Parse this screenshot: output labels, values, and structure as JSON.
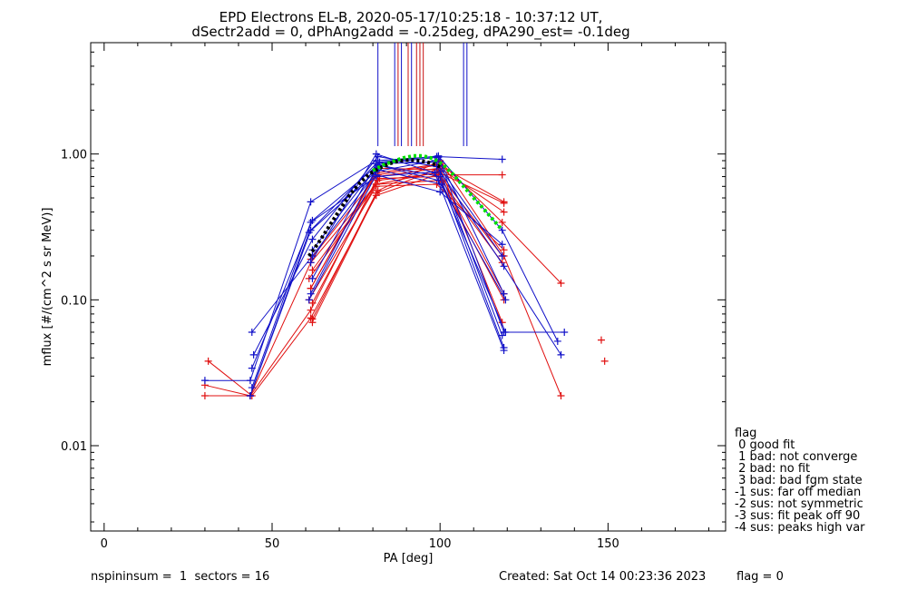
{
  "chart_data": {
    "type": "line",
    "title": "EPD Electrons EL-B, 2020-05-17/10:25:18 - 10:37:12 UT,",
    "subtitle": "dSectr2add = 0, dPhAng2add = -0.25deg, dPA290_est=  -0.1deg",
    "xlabel": "PA [deg]",
    "ylabel": "mflux [#/(cm^2 s sr MeV)]",
    "xlim": [
      -4,
      185
    ],
    "ylim": [
      0.0026,
      5.8
    ],
    "y_scale": "log",
    "x_ticks": [
      0,
      50,
      100,
      150
    ],
    "x_tick_labels": [
      "0",
      "50",
      "100",
      "150"
    ],
    "y_ticks": [
      0.01,
      0.1,
      1.0
    ],
    "y_tick_labels": [
      "0.01",
      "0.10",
      "1.00"
    ],
    "grid": false,
    "vertical_markers": [
      {
        "x": 81.5,
        "color": "#1010c8"
      },
      {
        "x": 86.5,
        "color": "#1010c8"
      },
      {
        "x": 87.5,
        "color": "#c81010"
      },
      {
        "x": 88.5,
        "color": "#1010c8"
      },
      {
        "x": 90.5,
        "color": "#c81010"
      },
      {
        "x": 91.5,
        "color": "#1010c8"
      },
      {
        "x": 93.0,
        "color": "#c81010"
      },
      {
        "x": 94.0,
        "color": "#c81010"
      },
      {
        "x": 95.0,
        "color": "#c81010"
      },
      {
        "x": 107.0,
        "color": "#1010c8"
      },
      {
        "x": 108.0,
        "color": "#1010c8"
      }
    ],
    "blue_spins": [
      [
        [
          30,
          0.028
        ],
        [
          43.5,
          0.028
        ],
        [
          61.5,
          0.47
        ],
        [
          81,
          0.9
        ],
        [
          99,
          0.96
        ],
        [
          118.5,
          0.92
        ]
      ],
      [
        [
          43.5,
          0.022
        ],
        [
          61.5,
          0.3
        ],
        [
          81,
          0.86
        ],
        [
          99.5,
          0.95
        ],
        [
          119,
          0.11
        ]
      ],
      [
        [
          44,
          0.034
        ],
        [
          62,
          0.35
        ],
        [
          81.5,
          0.84
        ],
        [
          100,
          0.7
        ],
        [
          119,
          0.047
        ]
      ],
      [
        [
          44,
          0.06
        ],
        [
          62,
          0.2
        ],
        [
          81.5,
          0.78
        ],
        [
          100.5,
          0.62
        ],
        [
          119.5,
          0.06
        ],
        [
          137,
          0.06
        ]
      ],
      [
        [
          44.5,
          0.042
        ],
        [
          62,
          0.26
        ],
        [
          81.5,
          0.96
        ],
        [
          99,
          0.82
        ],
        [
          119,
          0.17
        ],
        [
          136,
          0.042
        ]
      ],
      [
        [
          43.5,
          0.022
        ],
        [
          61,
          0.29
        ],
        [
          81,
          0.76
        ],
        [
          98.5,
          0.9
        ],
        [
          118.5,
          0.2
        ]
      ],
      [
        [
          44,
          0.025
        ],
        [
          61.5,
          0.34
        ],
        [
          81,
          0.7
        ],
        [
          100,
          0.76
        ],
        [
          118.5,
          0.057
        ]
      ],
      [
        [
          61.5,
          0.18
        ],
        [
          81,
          1.0
        ],
        [
          98.5,
          0.74
        ],
        [
          119,
          0.045
        ]
      ],
      [
        [
          62,
          0.22
        ],
        [
          81.5,
          0.84
        ],
        [
          99.5,
          0.66
        ],
        [
          119.5,
          0.1
        ]
      ],
      [
        [
          61,
          0.1
        ],
        [
          81,
          0.72
        ],
        [
          100,
          0.55
        ],
        [
          118.5,
          0.24
        ]
      ],
      [
        [
          62,
          0.14
        ],
        [
          81,
          0.86
        ],
        [
          100,
          0.88
        ],
        [
          119,
          0.06
        ]
      ],
      [
        [
          61.5,
          0.11
        ],
        [
          82,
          0.88
        ],
        [
          99.5,
          0.97
        ],
        [
          118.5,
          0.3
        ],
        [
          135,
          0.052
        ]
      ]
    ],
    "red_spins": [
      [
        [
          31,
          0.038
        ],
        [
          44,
          0.022
        ],
        [
          61.5,
          0.075
        ],
        [
          81,
          0.52
        ],
        [
          99,
          0.72
        ],
        [
          118.5,
          0.72
        ]
      ],
      [
        [
          30,
          0.026
        ],
        [
          43.5,
          0.022
        ],
        [
          61.5,
          0.18
        ],
        [
          81,
          0.62
        ],
        [
          99.5,
          0.75
        ],
        [
          119,
          0.46
        ]
      ],
      [
        [
          30,
          0.022
        ],
        [
          43.5,
          0.022
        ],
        [
          61.5,
          0.085
        ],
        [
          81.5,
          0.7
        ],
        [
          100,
          0.8
        ],
        [
          119,
          0.4
        ]
      ],
      [
        [
          62,
          0.07
        ],
        [
          81.5,
          0.56
        ],
        [
          100,
          0.9
        ],
        [
          119,
          0.2
        ],
        [
          136,
          0.022
        ]
      ],
      [
        [
          61.5,
          0.12
        ],
        [
          81,
          0.74
        ],
        [
          100.5,
          0.86
        ],
        [
          118.5,
          0.34
        ],
        [
          136,
          0.13
        ]
      ],
      [
        [
          61,
          0.1
        ],
        [
          81,
          0.6
        ],
        [
          99,
          0.62
        ],
        [
          119,
          0.22
        ]
      ],
      [
        [
          62,
          0.16
        ],
        [
          82,
          0.68
        ],
        [
          99.5,
          0.7
        ],
        [
          118.5,
          0.18
        ]
      ],
      [
        [
          61.5,
          0.12
        ],
        [
          81.5,
          0.8
        ],
        [
          99,
          0.78
        ],
        [
          119,
          0.11
        ]
      ],
      [
        [
          62,
          0.074
        ],
        [
          81,
          0.54
        ],
        [
          100,
          0.8
        ],
        [
          118.5,
          0.07
        ]
      ],
      [
        [
          61.5,
          0.19
        ],
        [
          81.5,
          0.72
        ],
        [
          99.5,
          0.84
        ],
        [
          119,
          0.47
        ]
      ],
      [
        [
          61,
          0.14
        ],
        [
          81,
          0.62
        ],
        [
          100,
          0.66
        ],
        [
          119,
          0.1
        ]
      ],
      [
        [
          62,
          0.095
        ],
        [
          81.5,
          0.66
        ],
        [
          99.5,
          0.74
        ],
        [
          118.5,
          0.2
        ]
      ]
    ],
    "isolated_red_points": [
      [
        148,
        0.053
      ],
      [
        149,
        0.038
      ]
    ],
    "fit_curves": [
      {
        "color": "#000000",
        "points": [
          [
            61,
            0.2
          ],
          [
            64,
            0.25
          ],
          [
            67,
            0.32
          ],
          [
            70,
            0.41
          ],
          [
            73,
            0.52
          ],
          [
            76,
            0.63
          ],
          [
            79,
            0.73
          ],
          [
            82,
            0.8
          ],
          [
            85,
            0.86
          ],
          [
            88,
            0.9
          ],
          [
            91,
            0.91
          ],
          [
            94,
            0.9
          ],
          [
            97,
            0.87
          ],
          [
            99,
            0.84
          ],
          [
            100,
            0.82
          ]
        ]
      },
      {
        "color": "#00e000",
        "points": [
          [
            80,
            0.77
          ],
          [
            83,
            0.84
          ],
          [
            86,
            0.89
          ],
          [
            89,
            0.94
          ],
          [
            92,
            0.97
          ],
          [
            95,
            0.97
          ],
          [
            98,
            0.93
          ],
          [
            101,
            0.84
          ],
          [
            104,
            0.72
          ],
          [
            107,
            0.6
          ],
          [
            110,
            0.5
          ],
          [
            113,
            0.42
          ],
          [
            116,
            0.35
          ],
          [
            118,
            0.31
          ]
        ]
      }
    ]
  },
  "legend": {
    "header": "flag",
    "entries": [
      " 0 good fit",
      " 1 bad: not converge",
      " 2 bad: no fit",
      " 3 bad: bad fgm state",
      "-1 sus: far off median",
      "-2 sus: not symmetric",
      "-3 sus: fit peak off 90",
      "-4 sus: peaks high var"
    ]
  },
  "footer": {
    "left": "nspininsum =  1  sectors = 16",
    "created": "Created: Sat Oct 14 00:23:36 2023",
    "flag": "flag = 0"
  },
  "colors": {
    "blue": "#1010c8",
    "red": "#e01010",
    "black": "#000000",
    "green": "#00e000"
  }
}
